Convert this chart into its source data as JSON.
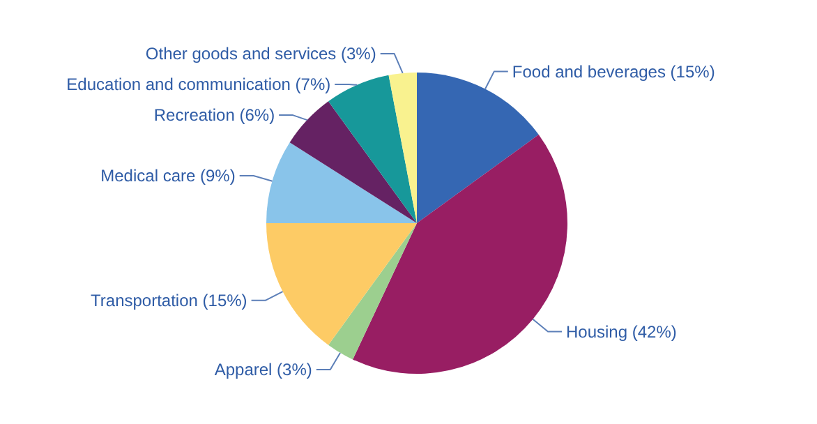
{
  "chart_data": {
    "type": "pie",
    "categories": [
      "Food and beverages (15%)",
      "Housing (42%)",
      "Apparel (3%)",
      "Transportation (15%)",
      "Medical care (9%)",
      "Recreation (6%)",
      "Education and communication (7%)",
      "Other goods and services (3%)"
    ],
    "values": [
      15,
      42,
      3,
      15,
      9,
      6,
      7,
      3
    ],
    "colors": [
      "#3567b3",
      "#981e63",
      "#9ccf8f",
      "#fdcb65",
      "#89c4ea",
      "#652263",
      "#17989a",
      "#f9f28f"
    ]
  }
}
